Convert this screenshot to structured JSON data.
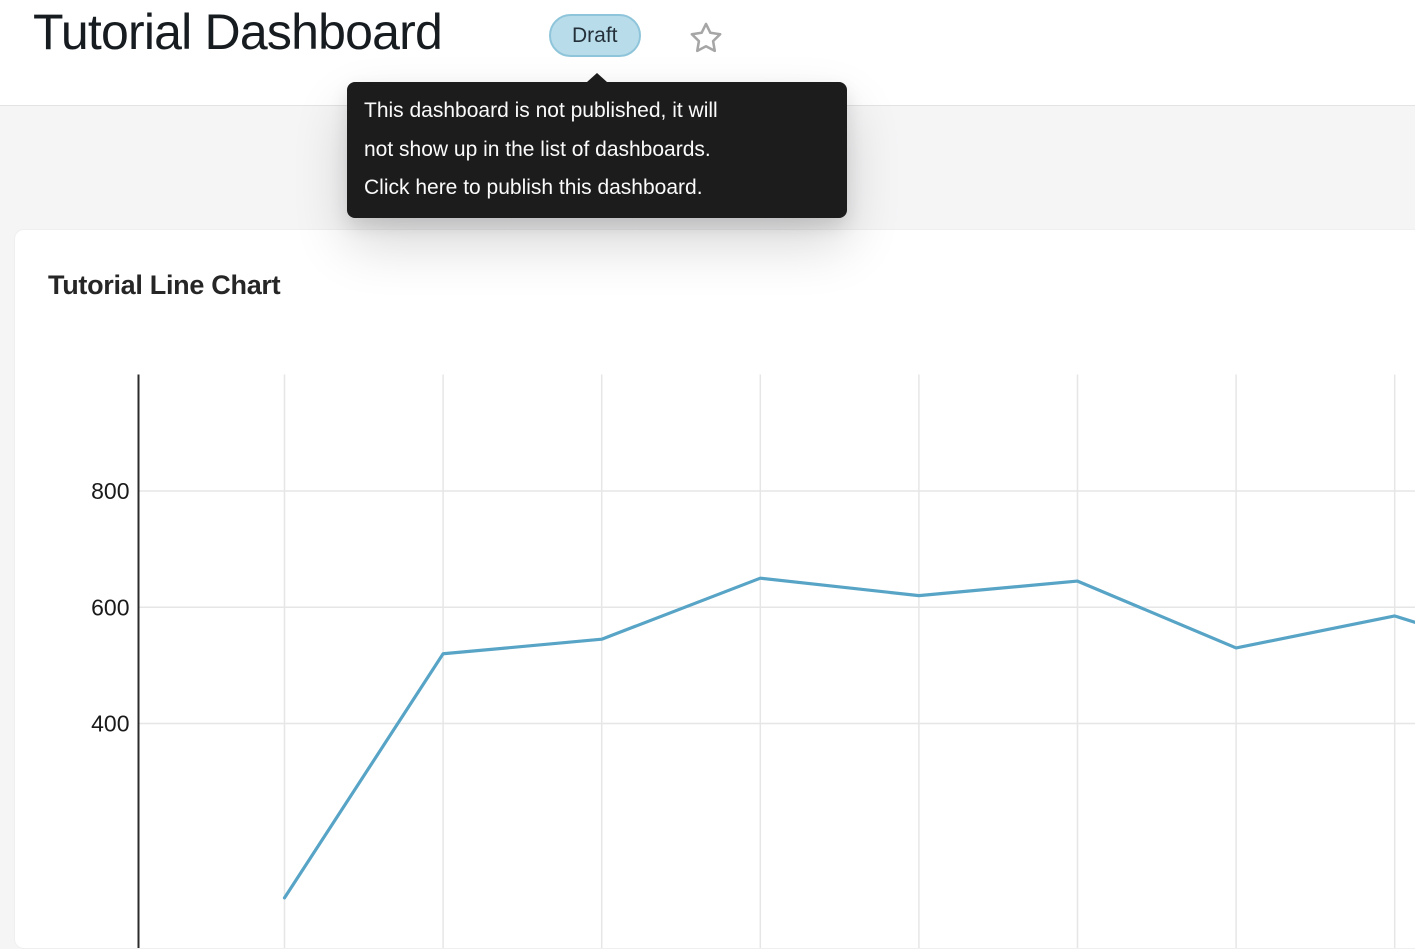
{
  "header": {
    "title": "Tutorial Dashboard",
    "status_badge": {
      "label": "Draft"
    }
  },
  "tooltip": {
    "lines": [
      "This dashboard is not published, it will",
      "not show up in the list of dashboards.",
      "Click here to publish this dashboard."
    ]
  },
  "card": {
    "title": "Tutorial Line Chart"
  },
  "chart_data": {
    "type": "line",
    "title": "Tutorial Line Chart",
    "x_axis": {
      "labels_visible": false
    },
    "y_axis": {
      "ticks": [
        800,
        600,
        400
      ],
      "visible_top": 1000
    },
    "grid": true,
    "legend": false,
    "series": [
      {
        "name": "Tutorial Line Chart",
        "color": "#57a4c6",
        "values": [
          100,
          520,
          545,
          650,
          620,
          645,
          530,
          585,
          500
        ]
      }
    ]
  },
  "colors": {
    "accent_line": "#57a4c6",
    "badge_bg": "#b9dcea",
    "badge_border": "#8fc5da",
    "tooltip_bg": "#1c1c1c",
    "page_bg": "#f5f5f6",
    "grid_line": "#e6e6e6",
    "axis_line": "#2b2b2b",
    "axis_label": "#1a1a1a"
  }
}
